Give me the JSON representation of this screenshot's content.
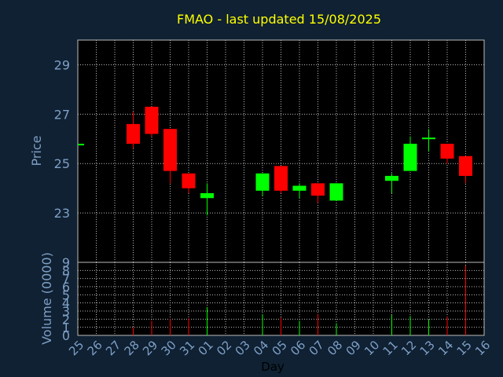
{
  "chart_data": {
    "type": "candlestick",
    "title": "FMAO - last updated 15/08/2025",
    "xlabel": "Day",
    "price": {
      "ylabel": "Price",
      "ylim": [
        21.0,
        30.0
      ],
      "yticks": [
        23,
        25,
        27,
        29
      ]
    },
    "volume": {
      "ylabel": "Volume (0000)",
      "ylim": [
        0,
        9
      ],
      "yticks": [
        0,
        1,
        2,
        3,
        4,
        5,
        6,
        7,
        8,
        9
      ]
    },
    "x_ticks": [
      "25",
      "26",
      "27",
      "28",
      "29",
      "30",
      "31",
      "01",
      "02",
      "03",
      "04",
      "05",
      "06",
      "07",
      "08",
      "09",
      "10",
      "11",
      "12",
      "13",
      "14",
      "15",
      "16"
    ],
    "grid": true,
    "colors": {
      "background": "#0f2132",
      "plot_background": "#000000",
      "grid": "#bcbcbc",
      "up": "#00ff00",
      "down": "#ff0000",
      "title": "#ffff00",
      "axis_text": "#7f9fc7"
    },
    "candles": [
      {
        "day": "25",
        "open": 25.8,
        "high": 25.8,
        "low": 25.8,
        "close": 25.8,
        "volume": 0.0
      },
      {
        "day": "28",
        "open": 26.6,
        "high": 27.1,
        "low": 25.6,
        "close": 25.8,
        "volume": 1.0
      },
      {
        "day": "29",
        "open": 27.3,
        "high": 27.3,
        "low": 26.1,
        "close": 26.2,
        "volume": 1.8
      },
      {
        "day": "30",
        "open": 26.4,
        "high": 26.4,
        "low": 24.2,
        "close": 24.7,
        "volume": 2.0
      },
      {
        "day": "31",
        "open": 24.6,
        "high": 24.6,
        "low": 23.8,
        "close": 24.0,
        "volume": 2.1
      },
      {
        "day": "01",
        "open": 23.6,
        "high": 24.2,
        "low": 22.9,
        "close": 23.8,
        "volume": 3.5
      },
      {
        "day": "04",
        "open": 23.9,
        "high": 24.6,
        "low": 23.7,
        "close": 24.6,
        "volume": 2.6
      },
      {
        "day": "05",
        "open": 24.9,
        "high": 24.9,
        "low": 23.8,
        "close": 23.9,
        "volume": 2.2
      },
      {
        "day": "06",
        "open": 23.9,
        "high": 24.2,
        "low": 23.6,
        "close": 24.1,
        "volume": 1.8
      },
      {
        "day": "07",
        "open": 24.2,
        "high": 24.2,
        "low": 23.4,
        "close": 23.7,
        "volume": 2.6
      },
      {
        "day": "08",
        "open": 23.5,
        "high": 24.2,
        "low": 23.5,
        "close": 24.2,
        "volume": 1.5
      },
      {
        "day": "11",
        "open": 24.3,
        "high": 24.6,
        "low": 23.8,
        "close": 24.5,
        "volume": 2.5
      },
      {
        "day": "12",
        "open": 24.7,
        "high": 26.1,
        "low": 24.7,
        "close": 25.8,
        "volume": 2.4
      },
      {
        "day": "13",
        "open": 26.05,
        "high": 26.4,
        "low": 25.5,
        "close": 26.05,
        "volume": 2.0
      },
      {
        "day": "14",
        "open": 25.8,
        "high": 25.8,
        "low": 25.0,
        "close": 25.2,
        "volume": 2.3
      },
      {
        "day": "15",
        "open": 25.3,
        "high": 25.3,
        "low": 24.2,
        "close": 24.5,
        "volume": 8.6
      }
    ]
  }
}
